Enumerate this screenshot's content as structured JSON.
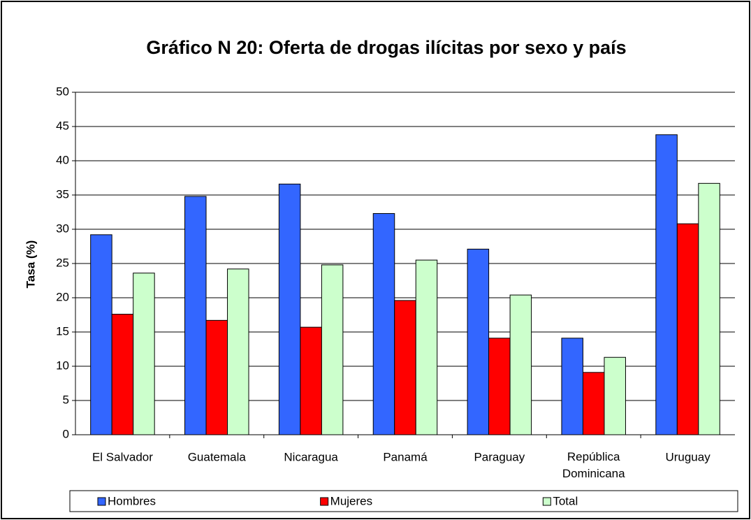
{
  "chart_data": {
    "type": "bar",
    "title": "Gráfico N 20: Oferta de drogas ilícitas por sexo y país",
    "y_label": "Tasa (%)",
    "categories": [
      "El Salvador",
      "Guatemala",
      "Nicaragua",
      "Panamá",
      "Paraguay",
      "República Dominicana",
      "Uruguay"
    ],
    "series": [
      {
        "name": "Hombres",
        "color": "#3366ff",
        "values": [
          29.2,
          34.8,
          36.6,
          32.3,
          27.1,
          14.1,
          43.8
        ]
      },
      {
        "name": "Mujeres",
        "color": "#ff0000",
        "values": [
          17.6,
          16.7,
          15.7,
          19.6,
          14.1,
          9.1,
          30.8
        ]
      },
      {
        "name": "Total",
        "color": "#ccffcc",
        "values": [
          23.6,
          24.2,
          24.8,
          25.5,
          20.4,
          11.3,
          36.7
        ]
      }
    ],
    "ylim": [
      0,
      50
    ],
    "yticks": [
      0,
      5,
      10,
      15,
      20,
      25,
      30,
      35,
      40,
      45,
      50
    ],
    "grid": true,
    "legend": "bottom"
  }
}
